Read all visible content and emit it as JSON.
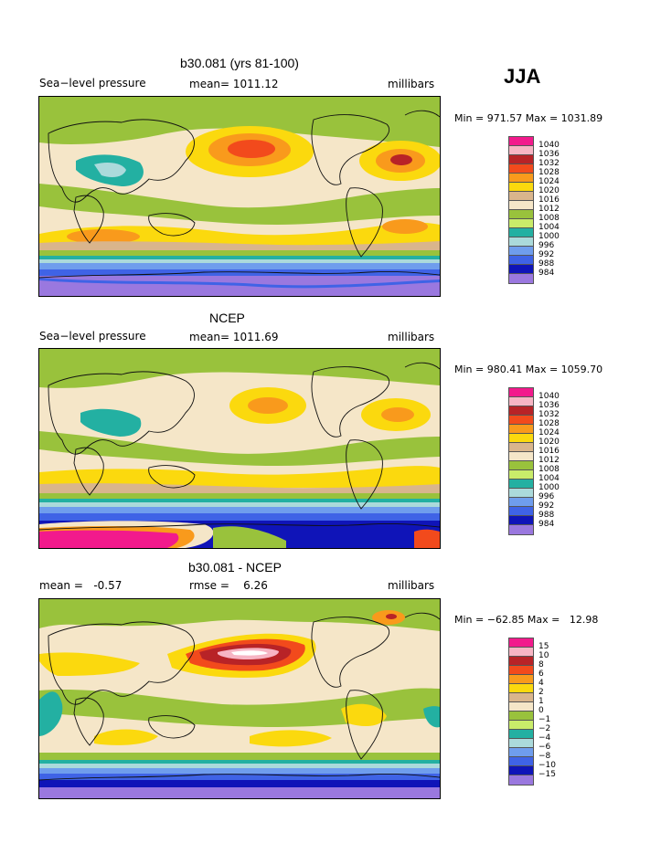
{
  "season": "JJA",
  "panels": [
    {
      "title": "b30.081 (yrs 81-100)",
      "left": "Sea−level pressure",
      "mid": "mean= 1011.12",
      "right": "millibars",
      "minmax": "Min = 971.57 Max = 1031.89",
      "legend": [
        {
          "label": "1040",
          "color": "#f21a8c"
        },
        {
          "label": "1036",
          "color": "#f7b5c4"
        },
        {
          "label": "1032",
          "color": "#b82327"
        },
        {
          "label": "1028",
          "color": "#f24a1c"
        },
        {
          "label": "1024",
          "color": "#f99a1c"
        },
        {
          "label": "1020",
          "color": "#fbd90e"
        },
        {
          "label": "1016",
          "color": "#d9b58c"
        },
        {
          "label": "1012",
          "color": "#f5e6c8"
        },
        {
          "label": "1008",
          "color": "#99c23c"
        },
        {
          "label": "1004",
          "color": "#c9ec6a"
        },
        {
          "label": "1000",
          "color": "#23b0a2"
        },
        {
          "label": "996",
          "color": "#abdadb"
        },
        {
          "label": "992",
          "color": "#6f9ded"
        },
        {
          "label": "988",
          "color": "#3f63e6"
        },
        {
          "label": "984",
          "color": "#0f14b8"
        },
        {
          "label": "",
          "color": "#9a78df"
        }
      ]
    },
    {
      "title": "NCEP",
      "left": "Sea−level pressure",
      "mid": "mean= 1011.69",
      "right": "millibars",
      "minmax": "Min = 980.41 Max = 1059.70",
      "legend": [
        {
          "label": "1040",
          "color": "#f21a8c"
        },
        {
          "label": "1036",
          "color": "#f7b5c4"
        },
        {
          "label": "1032",
          "color": "#b82327"
        },
        {
          "label": "1028",
          "color": "#f24a1c"
        },
        {
          "label": "1024",
          "color": "#f99a1c"
        },
        {
          "label": "1020",
          "color": "#fbd90e"
        },
        {
          "label": "1016",
          "color": "#d9b58c"
        },
        {
          "label": "1012",
          "color": "#f5e6c8"
        },
        {
          "label": "1008",
          "color": "#99c23c"
        },
        {
          "label": "1004",
          "color": "#c9ec6a"
        },
        {
          "label": "1000",
          "color": "#23b0a2"
        },
        {
          "label": "996",
          "color": "#abdadb"
        },
        {
          "label": "992",
          "color": "#6f9ded"
        },
        {
          "label": "988",
          "color": "#3f63e6"
        },
        {
          "label": "984",
          "color": "#0f14b8"
        },
        {
          "label": "",
          "color": "#9a78df"
        }
      ]
    },
    {
      "title": "b30.081 - NCEP",
      "left": "mean =   -0.57",
      "mid": "rmse =    6.26",
      "right": "millibars",
      "minmax": "Min = −62.85 Max =   12.98",
      "legend": [
        {
          "label": "15",
          "color": "#f21a8c"
        },
        {
          "label": "10",
          "color": "#f7b5c4"
        },
        {
          "label": "8",
          "color": "#b82327"
        },
        {
          "label": "6",
          "color": "#f24a1c"
        },
        {
          "label": "4",
          "color": "#f99a1c"
        },
        {
          "label": "2",
          "color": "#fbd90e"
        },
        {
          "label": "1",
          "color": "#d9b58c"
        },
        {
          "label": "0",
          "color": "#f5e6c8"
        },
        {
          "label": "−1",
          "color": "#99c23c"
        },
        {
          "label": "−2",
          "color": "#c9ec6a"
        },
        {
          "label": "−4",
          "color": "#23b0a2"
        },
        {
          "label": "−6",
          "color": "#abdadb"
        },
        {
          "label": "−8",
          "color": "#6f9ded"
        },
        {
          "label": "−10",
          "color": "#3f63e6"
        },
        {
          "label": "−15",
          "color": "#0f14b8"
        },
        {
          "label": "",
          "color": "#9a78df"
        }
      ]
    }
  ]
}
